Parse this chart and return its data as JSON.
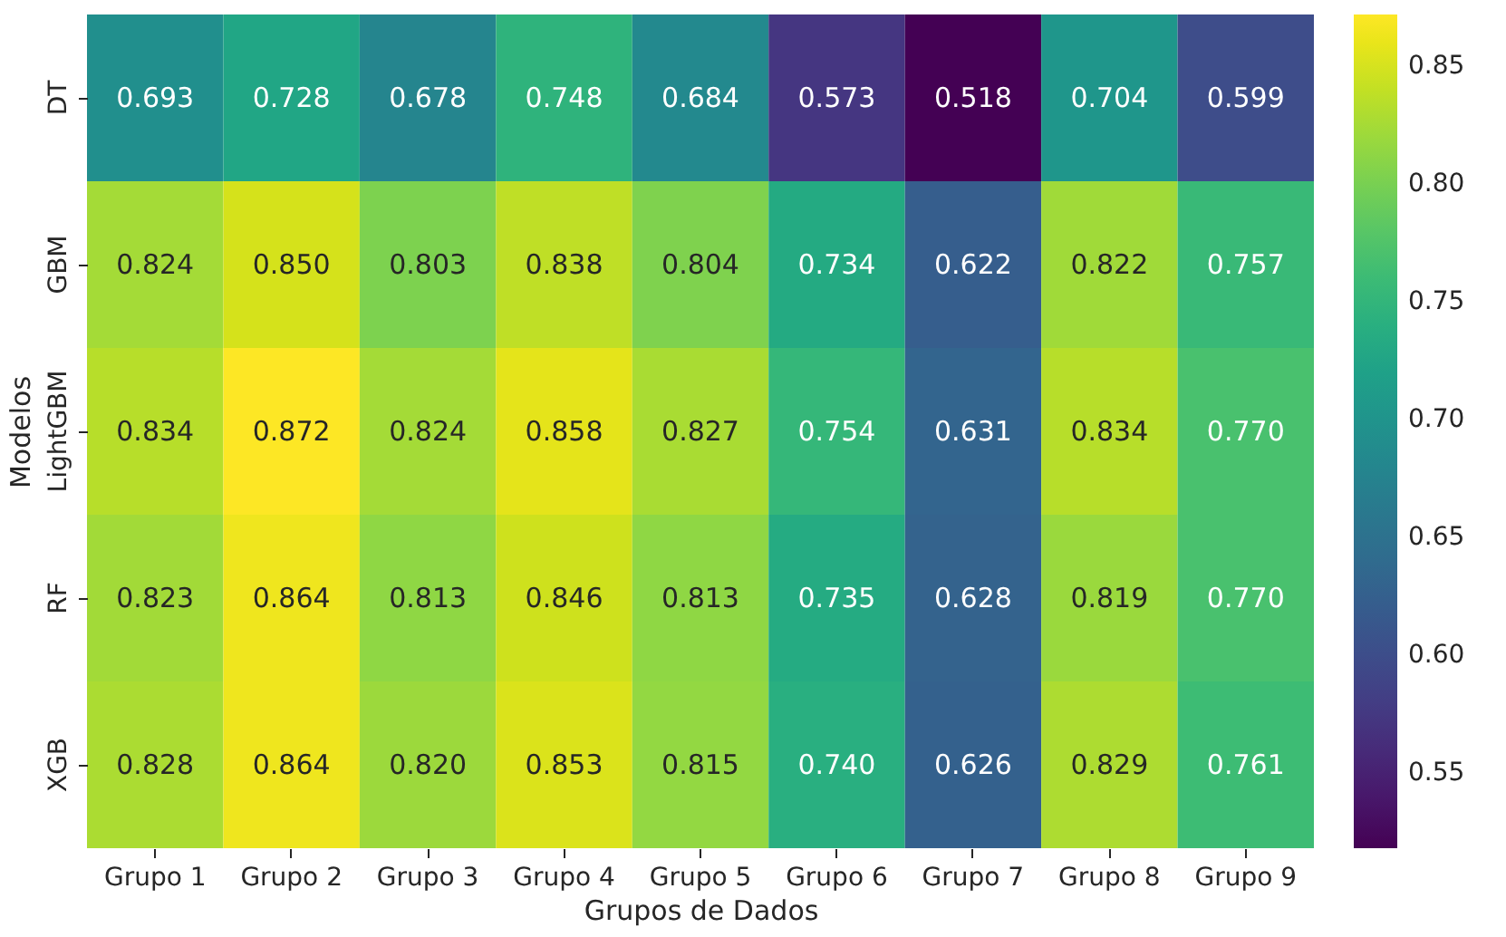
{
  "chart_data": {
    "type": "heatmap",
    "xlabel": "Grupos de Dados",
    "ylabel": "Modelos",
    "categories": [
      "Grupo 1",
      "Grupo 2",
      "Grupo 3",
      "Grupo 4",
      "Grupo 5",
      "Grupo 6",
      "Grupo 7",
      "Grupo 8",
      "Grupo 9"
    ],
    "y_categories": [
      "DT",
      "GBM",
      "LightGBM",
      "RF",
      "XGB"
    ],
    "cells": [
      [
        0.693,
        0.728,
        0.678,
        0.748,
        0.684,
        0.573,
        0.518,
        0.704,
        0.599
      ],
      [
        0.824,
        0.85,
        0.803,
        0.838,
        0.804,
        0.734,
        0.622,
        0.822,
        0.757
      ],
      [
        0.834,
        0.872,
        0.824,
        0.858,
        0.827,
        0.754,
        0.631,
        0.834,
        0.77
      ],
      [
        0.823,
        0.864,
        0.813,
        0.846,
        0.813,
        0.735,
        0.628,
        0.819,
        0.77
      ],
      [
        0.828,
        0.864,
        0.82,
        0.853,
        0.815,
        0.74,
        0.626,
        0.829,
        0.761
      ]
    ],
    "cell_labels": [
      [
        "0.693",
        "0.728",
        "0.678",
        "0.748",
        "0.684",
        "0.573",
        "0.518",
        "0.704",
        "0.599"
      ],
      [
        "0.824",
        "0.850",
        "0.803",
        "0.838",
        "0.804",
        "0.734",
        "0.622",
        "0.822",
        "0.757"
      ],
      [
        "0.834",
        "0.872",
        "0.824",
        "0.858",
        "0.827",
        "0.754",
        "0.631",
        "0.834",
        "0.770"
      ],
      [
        "0.823",
        "0.864",
        "0.813",
        "0.846",
        "0.813",
        "0.735",
        "0.628",
        "0.819",
        "0.770"
      ],
      [
        "0.828",
        "0.864",
        "0.820",
        "0.853",
        "0.815",
        "0.740",
        "0.626",
        "0.829",
        "0.761"
      ]
    ],
    "clim": [
      0.518,
      0.872
    ],
    "cticks": [
      0.55,
      {
        "value": 0.6,
        "label": "0.60"
      },
      0.65,
      {
        "value": 0.7,
        "label": "0.70"
      },
      0.75,
      {
        "value": 0.8,
        "label": "0.80"
      },
      0.85
    ]
  }
}
